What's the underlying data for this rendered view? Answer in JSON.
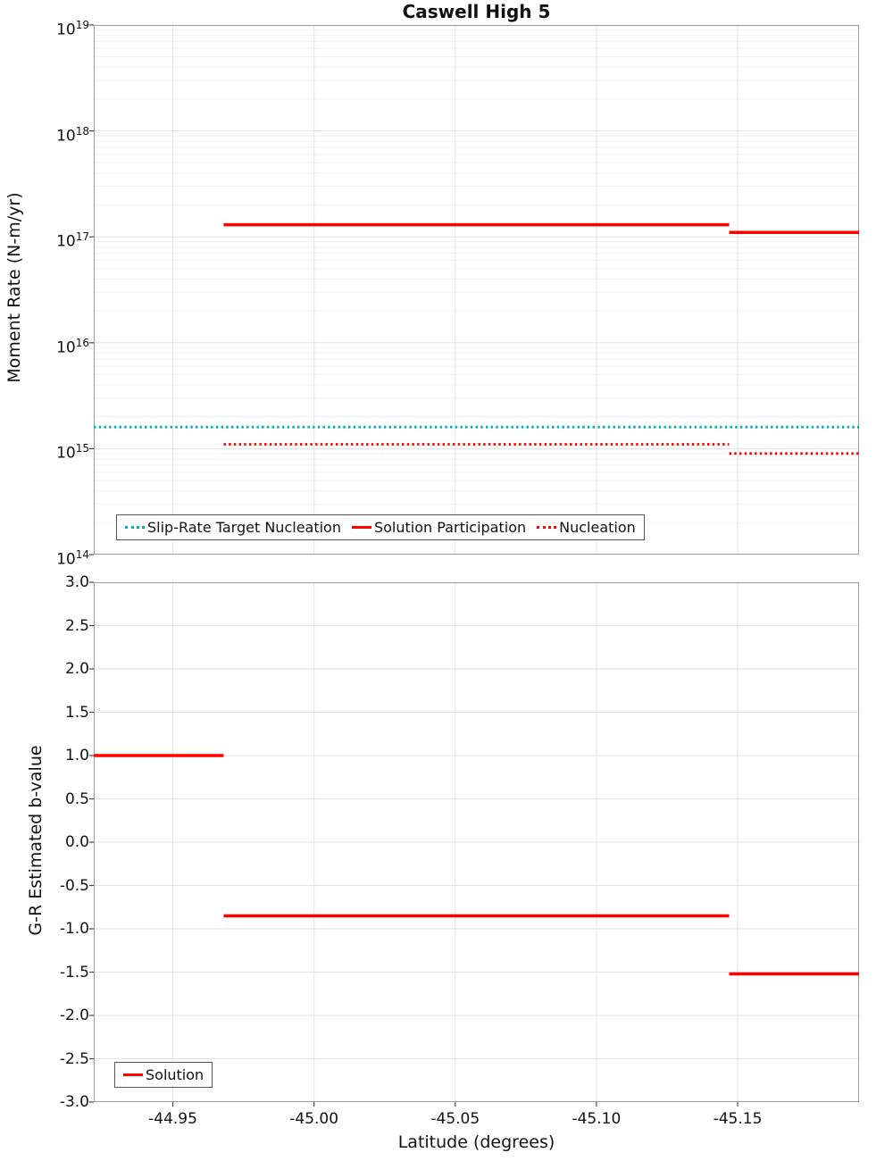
{
  "title": "Caswell High 5",
  "x_axis": {
    "label": "Latitude (degrees)",
    "min": -44.922,
    "max": -45.193,
    "ticks": [
      -44.95,
      -45.0,
      -45.05,
      -45.1,
      -45.15
    ],
    "tick_labels": [
      "-44.95",
      "-45.00",
      "-45.05",
      "-45.10",
      "-45.15"
    ]
  },
  "chart_data": [
    {
      "type": "line",
      "title": "Caswell High 5",
      "ylabel": "Moment Rate (N-m/yr)",
      "yscale": "log",
      "ylim": [
        100000000000000.0,
        1e+19
      ],
      "y_tick_exponents": [
        14,
        15,
        16,
        17,
        18,
        19
      ],
      "xlim": [
        -44.922,
        -45.193
      ],
      "grid": true,
      "legend_position": "bottom-left-horizontal",
      "series": [
        {
          "name": "Slip-Rate Target Nucleation",
          "color": "#00b0b4",
          "style": "dotted",
          "segments": [
            {
              "x": [
                -44.922,
                -45.193
              ],
              "y": [
                1600000000000000.0,
                1600000000000000.0
              ]
            }
          ]
        },
        {
          "name": "Solution Participation",
          "color": "#ff0000",
          "style": "solid",
          "segments": [
            {
              "x": [
                -44.968,
                -45.147
              ],
              "y": [
                1.3e+17,
                1.3e+17
              ]
            },
            {
              "x": [
                -45.147,
                -45.193
              ],
              "y": [
                1.1e+17,
                1.1e+17
              ]
            }
          ]
        },
        {
          "name": "Nucleation",
          "color": "#ff0000",
          "style": "dotted",
          "segments": [
            {
              "x": [
                -44.968,
                -45.147
              ],
              "y": [
                1100000000000000.0,
                1100000000000000.0
              ]
            },
            {
              "x": [
                -45.147,
                -45.193
              ],
              "y": [
                900000000000000.0,
                900000000000000.0
              ]
            }
          ]
        }
      ]
    },
    {
      "type": "line",
      "ylabel": "G-R Estimated b-value",
      "xlabel": "Latitude (degrees)",
      "yscale": "linear",
      "ylim": [
        -3.0,
        3.0
      ],
      "y_tick_step": 0.5,
      "xlim": [
        -44.922,
        -45.193
      ],
      "grid": true,
      "legend_position": "bottom-left",
      "series": [
        {
          "name": "Solution",
          "color": "#ff0000",
          "style": "solid",
          "segments": [
            {
              "x": [
                -44.922,
                -44.968
              ],
              "y": [
                1.0,
                1.0
              ]
            },
            {
              "x": [
                -44.968,
                -45.147
              ],
              "y": [
                -0.85,
                -0.85
              ]
            },
            {
              "x": [
                -45.147,
                -45.193
              ],
              "y": [
                -1.52,
                -1.52
              ]
            }
          ]
        }
      ]
    }
  ]
}
